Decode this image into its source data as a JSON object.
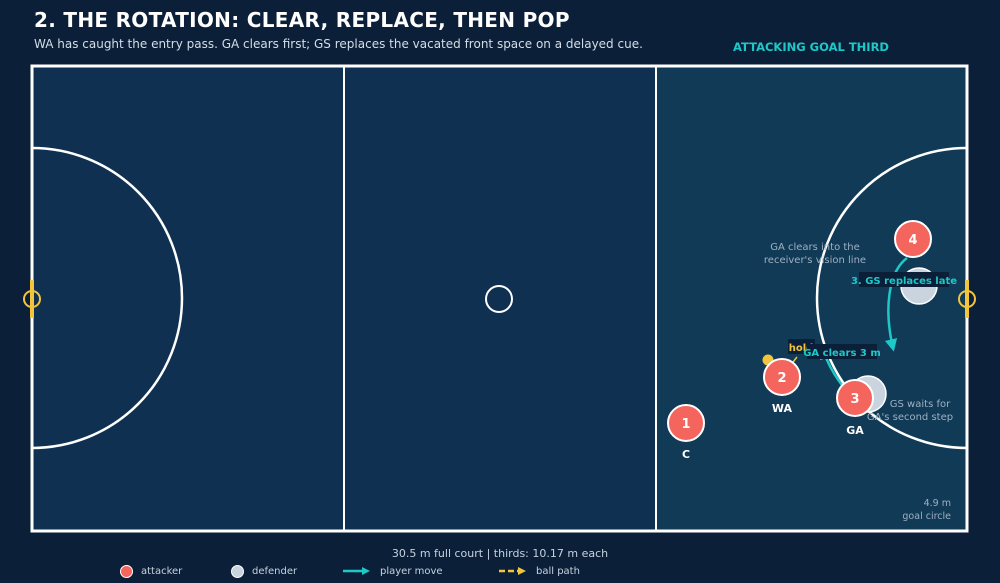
{
  "header": {
    "title": "2. THE ROTATION: CLEAR, REPLACE, THEN POP",
    "subtitle": "WA has caught the entry pass. GA clears first; GS replaces the vacated front space on a delayed cue."
  },
  "court": {
    "zone_label": "ATTACKING GOAL THIRD",
    "circle_note_value": "4.9 m",
    "circle_note_label": "goal circle"
  },
  "players": {
    "c": {
      "number": "1",
      "name": "C"
    },
    "wa": {
      "number": "2",
      "name": "WA"
    },
    "ga": {
      "number": "3",
      "name": "GA"
    },
    "gs": {
      "number": "4"
    }
  },
  "annotations": {
    "hold": "hold",
    "ga_clears": "GA clears 3 m",
    "gs_replaces": "3. GS replaces late",
    "ga_note_line1": "GA clears into the",
    "ga_note_line2": "receiver's vision line",
    "gs_note_line1": "GS waits for",
    "gs_note_line2": "GA's second step"
  },
  "footer": {
    "dimensions": "30.5 m full court  |  thirds: 10.17 m each"
  },
  "legend": {
    "attacker": "attacker",
    "defender": "defender",
    "player_move": "player move",
    "ball_path": "ball path"
  },
  "colors": {
    "background": "#0b2038",
    "third_dark": "#0f3050",
    "third_attack": "#103a56",
    "court_line": "#ffffff",
    "attacker": "#f4655e",
    "defender": "#c9d4df",
    "move": "#1ec8c8",
    "ball": "#f2c53d"
  }
}
